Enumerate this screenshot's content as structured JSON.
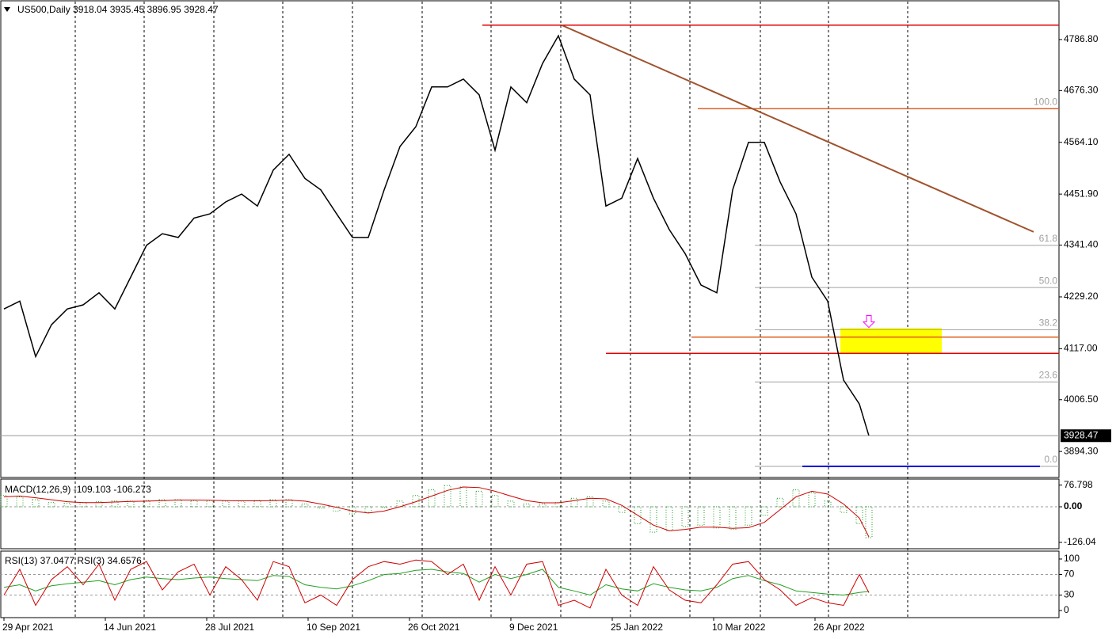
{
  "chart_data": [
    {
      "type": "line",
      "title": "US500,Daily  3918.04 3935.45 3896.95 3928.47",
      "color": "#000000",
      "x": [
        0,
        5,
        10,
        15,
        20,
        25,
        30,
        35,
        40,
        45,
        50,
        55,
        60,
        65,
        70,
        75,
        80,
        85,
        90,
        95,
        100,
        105,
        110,
        115,
        120,
        125,
        130,
        135,
        140,
        145,
        150,
        155,
        160,
        165,
        170,
        175,
        180,
        185,
        190,
        195,
        200,
        205,
        210,
        215,
        220,
        225,
        230,
        235,
        240,
        245,
        250,
        255,
        260,
        265,
        270,
        273
      ],
      "values": [
        4203,
        4220,
        4100,
        4169,
        4203,
        4212,
        4238,
        4203,
        4272,
        4341,
        4366,
        4358,
        4400,
        4409,
        4435,
        4452,
        4426,
        4504,
        4538,
        4486,
        4461,
        4409,
        4358,
        4358,
        4461,
        4555,
        4598,
        4684,
        4684,
        4701,
        4667,
        4547,
        4684,
        4650,
        4735,
        4795,
        4701,
        4667,
        4426,
        4443,
        4529,
        4443,
        4375,
        4323,
        4255,
        4238,
        4461,
        4564,
        4564,
        4478,
        4409,
        4272,
        4220,
        4049,
        3997,
        3928.47
      ],
      "xlim": [
        -1.25,
        333
      ],
      "ylim": [
        3838,
        4869
      ],
      "xticks": [
        {
          "value": 0,
          "label": "29 Apr 2021"
        },
        {
          "value": 32,
          "label": "14 Jun 2021"
        },
        {
          "value": 64,
          "label": "28 Jul 2021"
        },
        {
          "value": 96,
          "label": "10 Sep 2021"
        },
        {
          "value": 128,
          "label": "26 Oct 2021"
        },
        {
          "value": 160,
          "label": "9 Dec 2021"
        },
        {
          "value": 192,
          "label": "25 Jan 2022"
        },
        {
          "value": 224,
          "label": "10 Mar 2022"
        },
        {
          "value": 256,
          "label": "26 Apr 2022"
        }
      ],
      "yticks": [
        {
          "value": 4786.8,
          "label": "4786.80"
        },
        {
          "value": 4676.3,
          "label": "4676.30"
        },
        {
          "value": 4564.1,
          "label": "4564.10"
        },
        {
          "value": 4451.9,
          "label": "4451.90"
        },
        {
          "value": 4341.4,
          "label": "4341.40"
        },
        {
          "value": 4229.2,
          "label": "4229.20"
        },
        {
          "value": 4117,
          "label": "4117.00"
        },
        {
          "value": 4006.5,
          "label": "4006.50"
        },
        {
          "value": 3894.3,
          "label": "3894.30"
        }
      ],
      "current_price": 3928.47,
      "levels": [
        {
          "price": 4818,
          "from": 151,
          "color": "#e00000"
        },
        {
          "price": 4637,
          "from": 219,
          "color": "#e06020"
        },
        {
          "price": 4107,
          "from": 190,
          "color": "#e00000"
        },
        {
          "price": 4142,
          "from": 217,
          "color": "#e06020"
        },
        {
          "price": 3862,
          "from": 252,
          "to": 327,
          "color": "#0000e0"
        }
      ],
      "trendline": {
        "x": [
          176,
          325
        ],
        "y": [
          4818,
          4370
        ],
        "color": "#a0522d"
      },
      "zone": {
        "x": [
          264,
          296
        ],
        "y": [
          4107,
          4162
        ],
        "color": "#ffff00"
      },
      "arrow": {
        "x": 273,
        "y": 4175,
        "color": "#ff00ff"
      },
      "fib": {
        "high": 4637,
        "low": 3862,
        "from": 237,
        "color": "#a0a0a0",
        "levels": [
          {
            "value": 100,
            "label": "100.0"
          },
          61.8,
          {
            "value": 50,
            "label": "50.0"
          },
          38.2,
          23.6,
          {
            "value": 0,
            "label": "0.0"
          }
        ]
      }
    },
    {
      "type": "macd",
      "title": "MACD(12,26,9) -109.103 -106.273",
      "color": "#22a022",
      "signal_color": "#d00000",
      "x": [
        0,
        5,
        10,
        15,
        20,
        25,
        30,
        35,
        40,
        45,
        50,
        55,
        60,
        65,
        70,
        75,
        80,
        85,
        90,
        95,
        100,
        105,
        110,
        115,
        120,
        125,
        130,
        135,
        140,
        145,
        150,
        155,
        160,
        165,
        170,
        175,
        180,
        185,
        190,
        195,
        200,
        205,
        210,
        215,
        220,
        225,
        230,
        235,
        240,
        245,
        250,
        255,
        260,
        265,
        270,
        273
      ],
      "values": [
        40,
        35,
        25,
        15,
        12,
        15,
        18,
        20,
        20,
        22,
        25,
        25,
        22,
        22,
        20,
        20,
        22,
        25,
        25,
        10,
        -5,
        -15,
        -25,
        -20,
        0,
        20,
        40,
        60,
        75,
        70,
        55,
        40,
        20,
        10,
        10,
        15,
        30,
        35,
        20,
        -20,
        -60,
        -90,
        -85,
        -70,
        -65,
        -75,
        -80,
        -65,
        -30,
        30,
        60,
        50,
        20,
        -20,
        -60,
        -109.103
      ],
      "signal": [
        35,
        38,
        32,
        25,
        18,
        15,
        15,
        17,
        19,
        20,
        22,
        24,
        24,
        23,
        22,
        21,
        21,
        22,
        24,
        20,
        10,
        -2,
        -15,
        -22,
        -15,
        0,
        18,
        38,
        58,
        70,
        68,
        55,
        38,
        22,
        14,
        14,
        22,
        30,
        28,
        5,
        -30,
        -65,
        -85,
        -80,
        -72,
        -72,
        -76,
        -74,
        -55,
        -10,
        35,
        55,
        45,
        10,
        -40,
        -106.273
      ],
      "ylim": [
        -148.4,
        95.3
      ],
      "yticks": [
        76.798,
        {
          "value": 0,
          "label": "0.00"
        },
        -126.04
      ]
    },
    {
      "type": "rsi",
      "title": "RSI(13) 37.0477  RSI(3) 34.6576",
      "x": [
        0,
        5,
        10,
        15,
        20,
        25,
        30,
        35,
        40,
        45,
        50,
        55,
        60,
        65,
        70,
        75,
        80,
        85,
        90,
        95,
        100,
        105,
        110,
        115,
        120,
        125,
        130,
        135,
        140,
        145,
        150,
        155,
        160,
        165,
        170,
        175,
        180,
        185,
        190,
        195,
        200,
        205,
        210,
        215,
        220,
        225,
        230,
        235,
        240,
        245,
        250,
        255,
        260,
        265,
        270,
        273
      ],
      "series": [
        {
          "color": "#22a022",
          "values": [
            45,
            50,
            38,
            48,
            52,
            55,
            58,
            50,
            60,
            65,
            62,
            60,
            63,
            65,
            62,
            60,
            58,
            68,
            66,
            50,
            45,
            42,
            48,
            58,
            70,
            72,
            78,
            80,
            75,
            72,
            55,
            70,
            62,
            70,
            80,
            45,
            38,
            30,
            50,
            42,
            38,
            52,
            45,
            40,
            38,
            45,
            62,
            68,
            58,
            50,
            38,
            35,
            32,
            30,
            35,
            37.0477
          ]
        },
        {
          "color": "#d00000",
          "values": [
            30,
            80,
            10,
            60,
            85,
            50,
            90,
            20,
            80,
            95,
            40,
            75,
            90,
            30,
            85,
            60,
            20,
            95,
            85,
            15,
            30,
            10,
            60,
            85,
            95,
            90,
            98,
            95,
            70,
            90,
            20,
            85,
            30,
            90,
            95,
            10,
            20,
            5,
            80,
            30,
            10,
            85,
            40,
            20,
            15,
            50,
            90,
            95,
            60,
            40,
            10,
            25,
            15,
            10,
            70,
            34.6576
          ]
        }
      ],
      "ylim": [
        -13.8,
        113.8
      ],
      "yticks": [
        100,
        70,
        30,
        0
      ],
      "grid": [
        70,
        30
      ]
    }
  ]
}
